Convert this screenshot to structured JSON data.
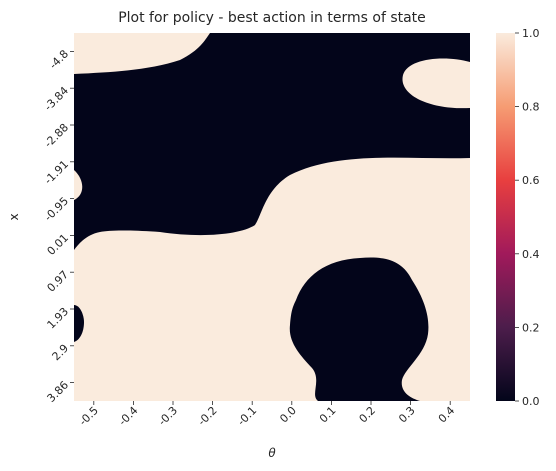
{
  "chart_data": {
    "type": "heatmap",
    "title": "Plot for policy - best action in terms of state",
    "xlabel": "θ",
    "ylabel": "x",
    "x_ticks": [
      "-0.5",
      "-0.4",
      "-0.3",
      "-0.2",
      "-0.1",
      "0.0",
      "0.1",
      "0.2",
      "0.3",
      "0.4"
    ],
    "y_ticks": [
      "-4.8",
      "-3.84",
      "-2.88",
      "-1.91",
      "-0.95",
      "0.01",
      "0.97",
      "1.93",
      "2.9",
      "3.86"
    ],
    "x_range": [
      -0.5,
      0.5
    ],
    "y_range": [
      -4.8,
      4.8
    ],
    "value_range": [
      0.0,
      1.0
    ],
    "colorbar_ticks": [
      "0.0",
      "0.2",
      "0.4",
      "0.6",
      "0.8",
      "1.0"
    ],
    "colormap": [
      "#03051a",
      "#4c1d4b",
      "#a11a5b",
      "#e83f3f",
      "#f69c73",
      "#faebdd"
    ],
    "grid": false,
    "regions": [
      {
        "value": 1,
        "label": "top band",
        "theta_range": [
          -0.5,
          -0.15
        ],
        "x_range": [
          -4.8,
          -3.7
        ]
      },
      {
        "value": 1,
        "label": "upper right blob",
        "theta_range": [
          0.32,
          0.5
        ],
        "x_range": [
          -3.95,
          -2.8
        ]
      },
      {
        "value": 1,
        "label": "lower field",
        "theta_range": [
          -0.5,
          0.5
        ],
        "x_range": [
          0.9,
          4.8
        ]
      },
      {
        "value": 1,
        "label": "middle right band",
        "theta_range": [
          -0.1,
          0.5
        ],
        "x_range": [
          -1.0,
          0.9
        ]
      },
      {
        "value": 0,
        "label": "main dark region",
        "theta_range": [
          -0.5,
          0.5
        ],
        "x_range": [
          -3.9,
          0.9
        ]
      },
      {
        "value": 0,
        "label": "lower dark blob",
        "theta_range": [
          0.03,
          0.33
        ],
        "x_range": [
          1.5,
          4.8
        ]
      },
      {
        "value": 0,
        "label": "left edge notch",
        "theta_range": [
          -0.5,
          -0.49
        ],
        "x_range": [
          2.5,
          3.3
        ]
      }
    ]
  }
}
